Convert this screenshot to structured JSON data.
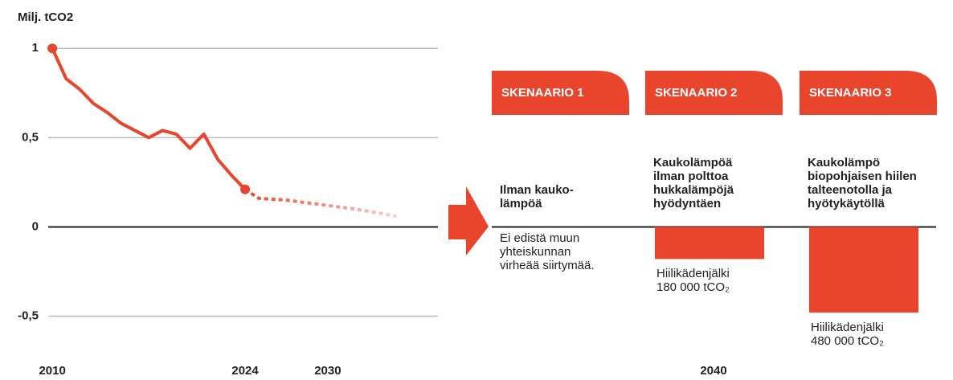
{
  "chart_data": [
    {
      "type": "line",
      "y_label": "Milj. tCO2",
      "xlim": [
        2009.7,
        2038
      ],
      "xticks": [
        2010,
        2024,
        2030
      ],
      "ylim": [
        -0.7,
        1.1
      ],
      "yticks": [
        1,
        {
          "value": 0.5,
          "label": "0,5"
        },
        0,
        {
          "value": -0.5,
          "label": "-0,5"
        }
      ],
      "grid": true,
      "series": [
        {
          "color": "#e8452c",
          "style": "solid",
          "x": [
            2010,
            2011,
            2012,
            2013,
            2014,
            2015,
            2016,
            2017,
            2018,
            2019,
            2020,
            2021,
            2022,
            2023,
            2024
          ],
          "values": [
            1.0,
            0.83,
            0.77,
            0.69,
            0.64,
            0.58,
            0.54,
            0.5,
            0.54,
            0.52,
            0.44,
            0.52,
            0.38,
            0.29,
            0.21
          ]
        },
        {
          "color": "#e8452c",
          "style": "dashed",
          "x": [
            2024,
            2025,
            2027,
            2030,
            2032,
            2035
          ],
          "values": [
            0.21,
            0.16,
            0.15,
            0.12,
            0.1,
            0.06
          ]
        }
      ]
    },
    {
      "type": "bar",
      "xlabel": "2040",
      "color": "#e8452c",
      "ylim": [
        -0.7,
        1.1
      ],
      "categories": [
        "SKENAARIO 1",
        "SKENAARIO 2",
        "SKENAARIO 3"
      ],
      "headings": [
        "Ilman kauko-\nlämpöä",
        "Kaukolämpöä\nilman polttoa\nhukkalämpöjä\nhyödyntäen",
        "Kaukolämpö\nbiopohjaisen hiilen\ntalteenotolla ja\nhyötykäytöllä"
      ],
      "values": [
        null,
        -0.18,
        -0.48
      ],
      "value_labels": [
        null,
        "Hiilikädenjälki\n180 000 tCO₂",
        "Hiilikädenjälki\n480 000 tCO₂"
      ],
      "notes": [
        "Ei edistä muun\nyhteiskunnan\nvirheää siirtymää.",
        null,
        null
      ]
    }
  ]
}
